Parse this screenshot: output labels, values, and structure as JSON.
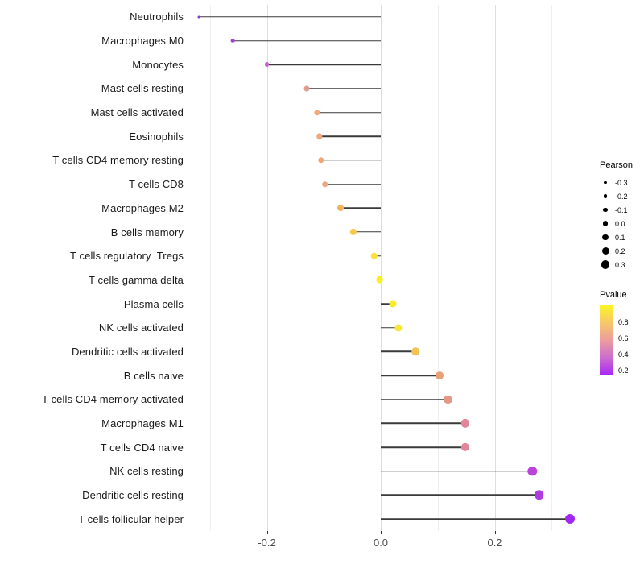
{
  "chart_data": {
    "type": "scatter",
    "subtype": "lollipop",
    "orientation": "horizontal",
    "title": "",
    "xlabel": "",
    "ylabel": "",
    "grid": "on",
    "x_axis": {
      "range": [
        -0.3336,
        0.3152
      ],
      "major_ticks": [
        -0.2,
        0.0,
        0.2
      ],
      "major_tick_labels": [
        "-0.2",
        "0.0",
        "0.2"
      ],
      "minor_ticks": [
        -0.3,
        -0.1,
        0.1,
        0.3
      ]
    },
    "segment_color": "#3a3a3a",
    "rows": [
      {
        "label": "Neutrophils",
        "pearson": -0.32,
        "dot_color": "#9030e0"
      },
      {
        "label": "Macrophages M0",
        "pearson": -0.26,
        "dot_color": "#a23cdc"
      },
      {
        "label": "Monocytes",
        "pearson": -0.2,
        "dot_color": "#c364cb"
      },
      {
        "label": "Mast cells resting",
        "pearson": -0.13,
        "dot_color": "#e49a8e"
      },
      {
        "label": "Mast cells activated",
        "pearson": -0.112,
        "dot_color": "#efa97b"
      },
      {
        "label": "Eosinophils",
        "pearson": -0.108,
        "dot_color": "#efa97b"
      },
      {
        "label": "T cells CD4 memory resting",
        "pearson": -0.105,
        "dot_color": "#efa878"
      },
      {
        "label": "T cells CD8",
        "pearson": -0.098,
        "dot_color": "#eea77c"
      },
      {
        "label": "Macrophages M2",
        "pearson": -0.071,
        "dot_color": "#f2b15f"
      },
      {
        "label": "B cells memory",
        "pearson": -0.048,
        "dot_color": "#f6c94c"
      },
      {
        "label": "T cells regulatory  Tregs",
        "pearson": -0.012,
        "dot_color": "#f8e336"
      },
      {
        "label": "T cells gamma delta",
        "pearson": -0.002,
        "dot_color": "#f9ef23"
      },
      {
        "label": "Plasma cells",
        "pearson": 0.021,
        "dot_color": "#f9eb2a"
      },
      {
        "label": "NK cells activated",
        "pearson": 0.031,
        "dot_color": "#f8e63a"
      },
      {
        "label": "Dendritic cells activated",
        "pearson": 0.061,
        "dot_color": "#f1c455"
      },
      {
        "label": "B cells naive",
        "pearson": 0.103,
        "dot_color": "#e8a077"
      },
      {
        "label": "T cells CD4 memory activated",
        "pearson": 0.118,
        "dot_color": "#e39883"
      },
      {
        "label": "Macrophages M1",
        "pearson": 0.148,
        "dot_color": "#e08699"
      },
      {
        "label": "T cells CD4 naive",
        "pearson": 0.148,
        "dot_color": "#e08699"
      },
      {
        "label": "NK cells resting",
        "pearson": 0.266,
        "dot_color": "#bb42db"
      },
      {
        "label": "Dendritic cells resting",
        "pearson": 0.278,
        "dot_color": "#b23ae1"
      },
      {
        "label": "T cells follicular helper",
        "pearson": 0.332,
        "dot_color": "#a327f2"
      }
    ]
  },
  "legend_size": {
    "title": "Pearson",
    "items": [
      "-0.3",
      "-0.2",
      "-0.1",
      "0.0",
      "0.1",
      "0.2",
      "0.3"
    ],
    "dot_color": "#000000"
  },
  "legend_color": {
    "title": "Pvalue",
    "tick_labels": [
      "0.8",
      "0.6",
      "0.4",
      "0.2"
    ],
    "tick_positions_pct": [
      24,
      47,
      70,
      93
    ],
    "gradient_top_to_bottom": [
      "#fcf425",
      "#f6c76a",
      "#ec9c9e",
      "#cc6bcf",
      "#a826f5"
    ]
  }
}
